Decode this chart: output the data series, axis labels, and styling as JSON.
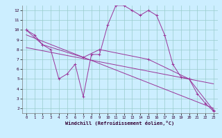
{
  "xlabel": "Windchill (Refroidissement éolien,°C)",
  "background_color": "#cceeff",
  "line_color": "#993399",
  "grid_color": "#99cccc",
  "xlim": [
    -0.5,
    23.5
  ],
  "ylim": [
    1.5,
    12.5
  ],
  "yticks": [
    2,
    3,
    4,
    5,
    6,
    7,
    8,
    9,
    10,
    11,
    12
  ],
  "xticks": [
    0,
    1,
    2,
    3,
    4,
    5,
    6,
    7,
    8,
    9,
    10,
    11,
    12,
    13,
    14,
    15,
    16,
    17,
    18,
    19,
    20,
    21,
    22,
    23
  ],
  "line1_x": [
    0,
    1,
    2,
    3,
    4,
    5,
    6,
    7,
    8,
    9,
    10,
    11,
    12,
    13,
    14,
    15,
    16,
    17,
    18,
    19,
    20,
    21,
    22,
    23
  ],
  "line1_y": [
    10.0,
    9.5,
    8.5,
    8.0,
    5.0,
    5.5,
    6.5,
    3.2,
    7.5,
    7.5,
    10.5,
    12.5,
    12.5,
    12.0,
    11.5,
    12.0,
    11.5,
    9.5,
    6.5,
    5.2,
    5.0,
    3.5,
    2.5,
    1.7
  ],
  "line2_x": [
    0,
    2,
    7,
    9,
    15,
    20,
    23
  ],
  "line2_y": [
    10.0,
    8.5,
    7.2,
    8.0,
    7.0,
    5.0,
    1.8
  ],
  "line3_x": [
    0,
    23
  ],
  "line3_y": [
    9.5,
    2.0
  ],
  "line4_x": [
    0,
    23
  ],
  "line4_y": [
    8.2,
    4.5
  ]
}
